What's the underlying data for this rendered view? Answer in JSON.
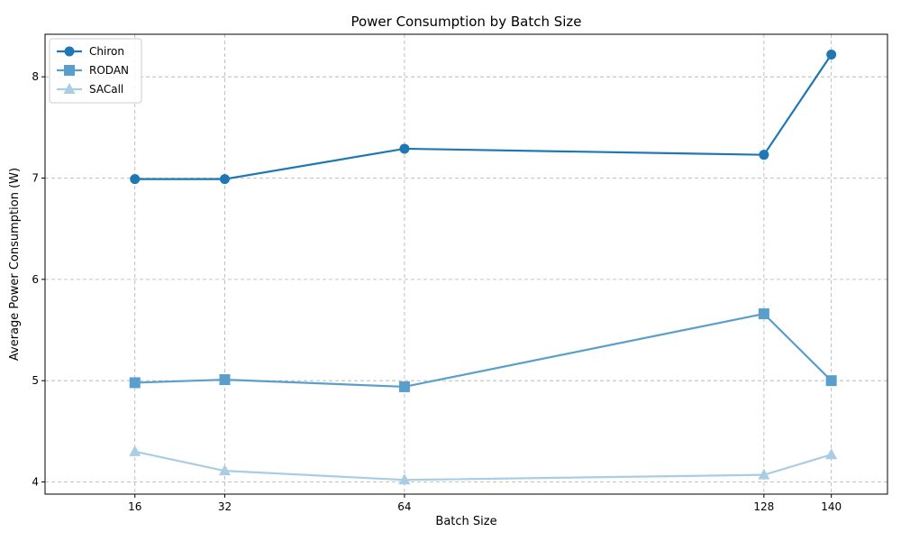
{
  "chart_data": {
    "type": "line",
    "title": "Power Consumption by Batch Size",
    "xlabel": "Batch Size",
    "ylabel": "Average Power Consumption (W)",
    "x": [
      16,
      32,
      64,
      128,
      140
    ],
    "x_tick_labels": [
      "16",
      "32",
      "64",
      "128",
      "140"
    ],
    "xlim": [
      0,
      150
    ],
    "ylim": [
      3.88,
      8.42
    ],
    "y_ticks": [
      4,
      5,
      6,
      7,
      8
    ],
    "y_tick_labels": [
      "4",
      "5",
      "6",
      "7",
      "8"
    ],
    "grid": true,
    "legend_position": "top-left",
    "series": [
      {
        "name": "Chiron",
        "marker": "circle",
        "color": "#1f77b4",
        "values": [
          6.99,
          6.99,
          7.29,
          7.23,
          8.22
        ]
      },
      {
        "name": "RODAN",
        "marker": "square",
        "color": "#5a9fcc",
        "values": [
          4.98,
          5.01,
          4.94,
          5.66,
          5.0
        ]
      },
      {
        "name": "SACall",
        "marker": "triangle",
        "color": "#a9cde4",
        "values": [
          4.3,
          4.11,
          4.02,
          4.07,
          4.27
        ]
      }
    ]
  }
}
